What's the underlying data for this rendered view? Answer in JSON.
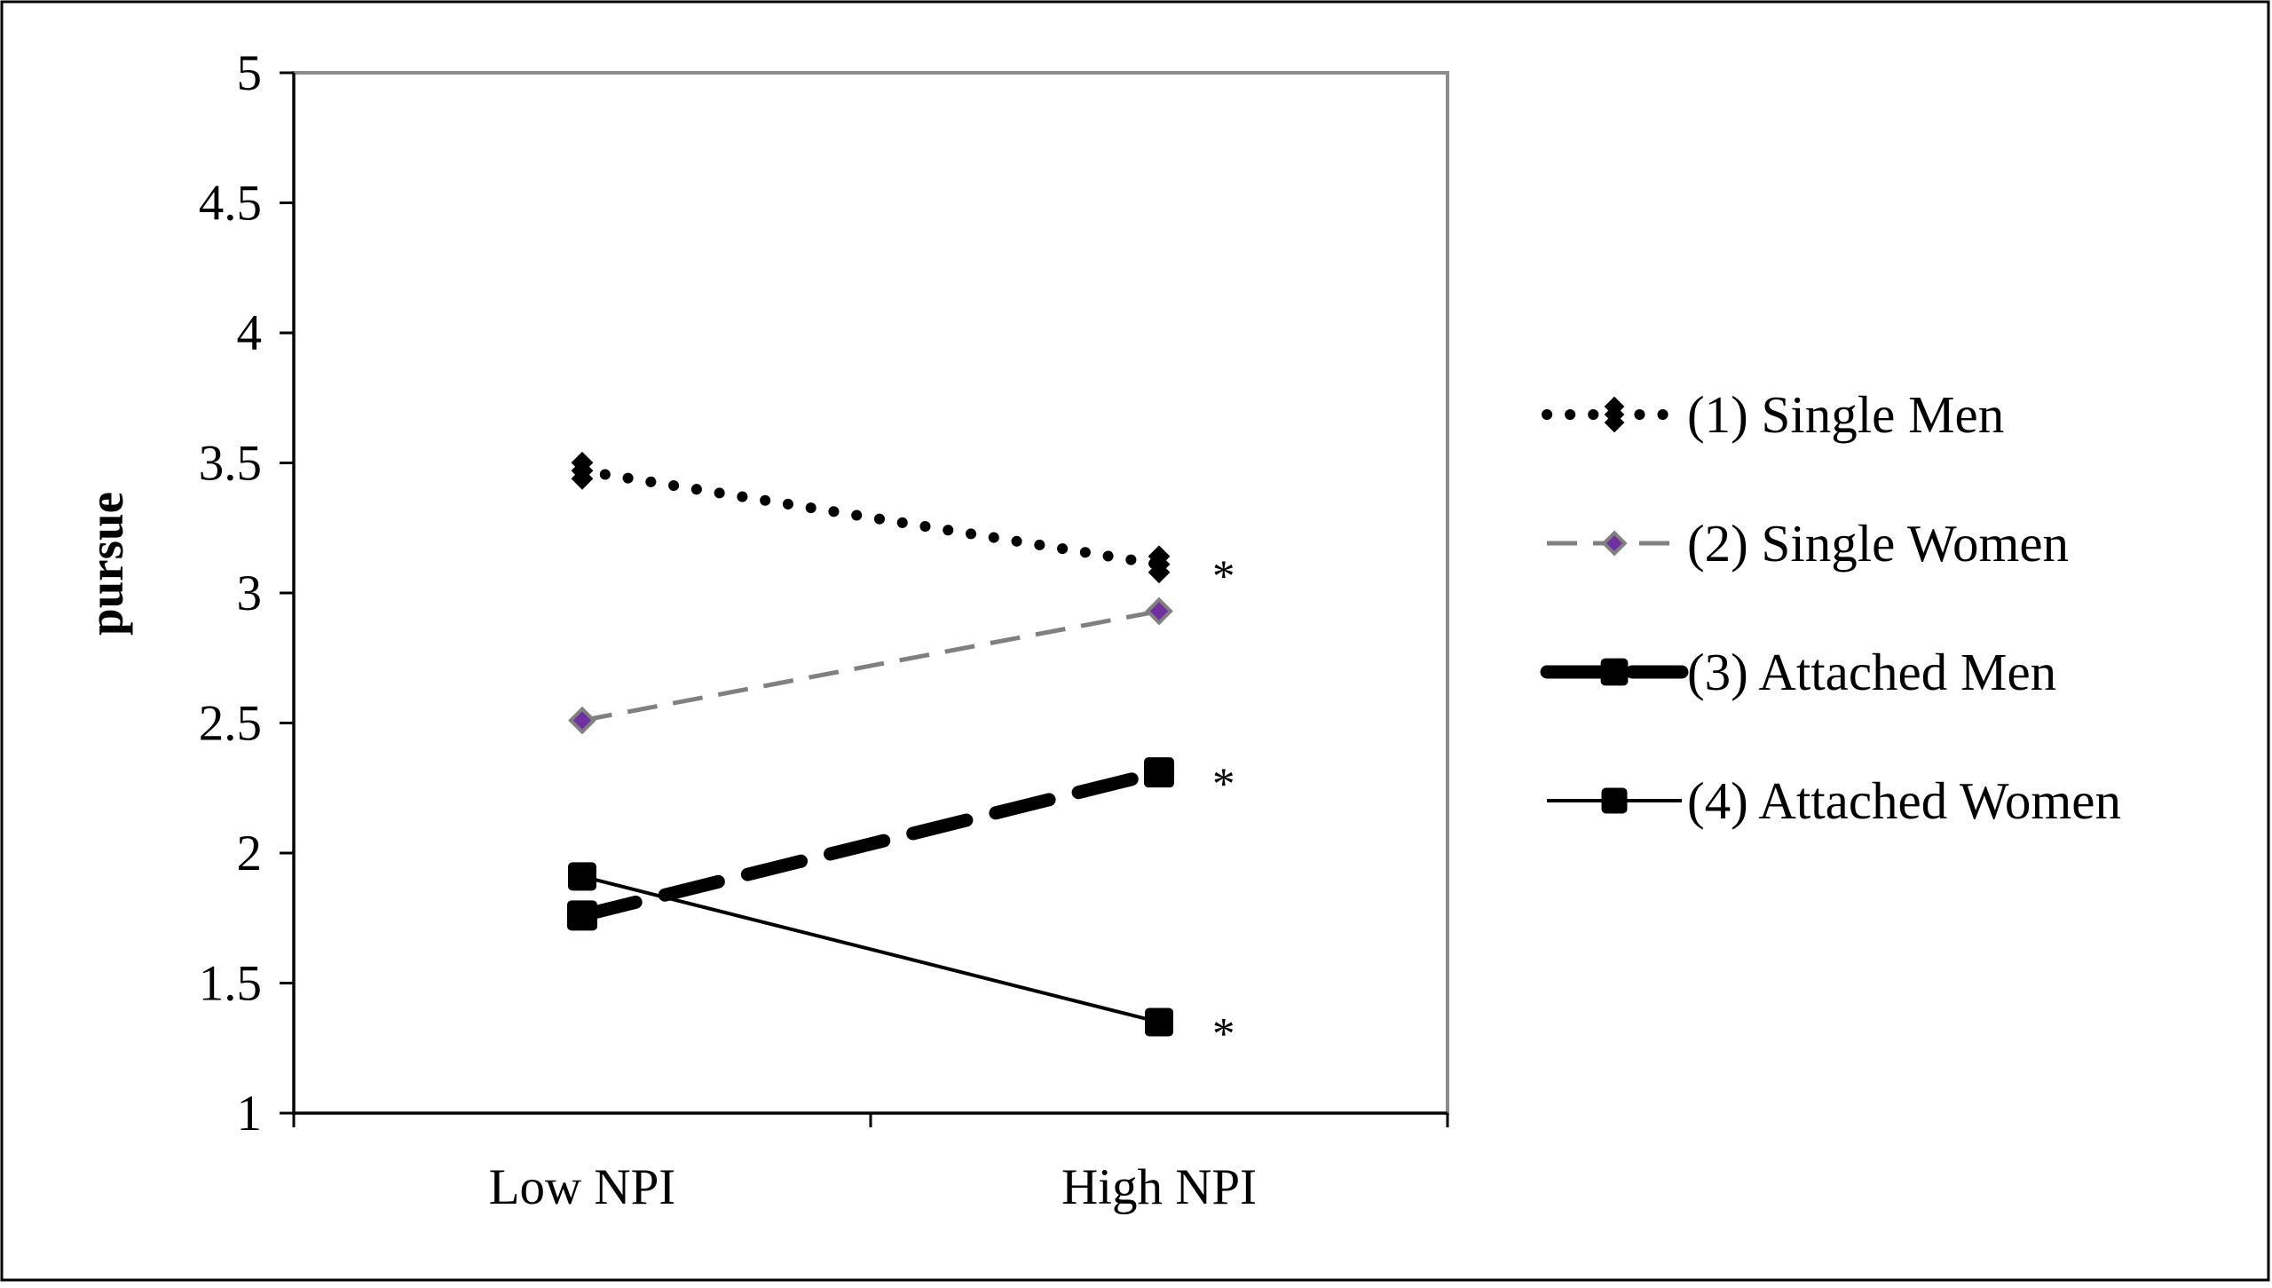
{
  "chart_data": {
    "type": "line",
    "ylabel": "pursue",
    "xlabel": "",
    "title": "",
    "categories": [
      "Low NPI",
      "High NPI"
    ],
    "ylim": [
      1,
      5
    ],
    "yticks": [
      "1",
      "1.5",
      "2",
      "2.5",
      "3",
      "3.5",
      "4",
      "4.5",
      "5"
    ],
    "grid": false,
    "legend_position": "right",
    "series": [
      {
        "name": "(1) Single Men",
        "values": [
          3.47,
          3.11
        ],
        "color": "#000000",
        "line_style": "dotted",
        "marker": "diamond",
        "annotation": "*"
      },
      {
        "name": "(2) Single Women",
        "values": [
          2.51,
          2.93
        ],
        "color": "#808080",
        "marker_fill": "#7030a0",
        "line_style": "dashed",
        "marker": "diamond",
        "annotation": ""
      },
      {
        "name": "(3) Attached Men",
        "values": [
          1.76,
          2.31
        ],
        "color": "#000000",
        "line_style": "dashed-thick",
        "marker": "square",
        "annotation": "*"
      },
      {
        "name": "(4) Attached Women",
        "values": [
          1.91,
          1.35
        ],
        "color": "#000000",
        "line_style": "solid",
        "marker": "square",
        "annotation": "*"
      }
    ]
  }
}
